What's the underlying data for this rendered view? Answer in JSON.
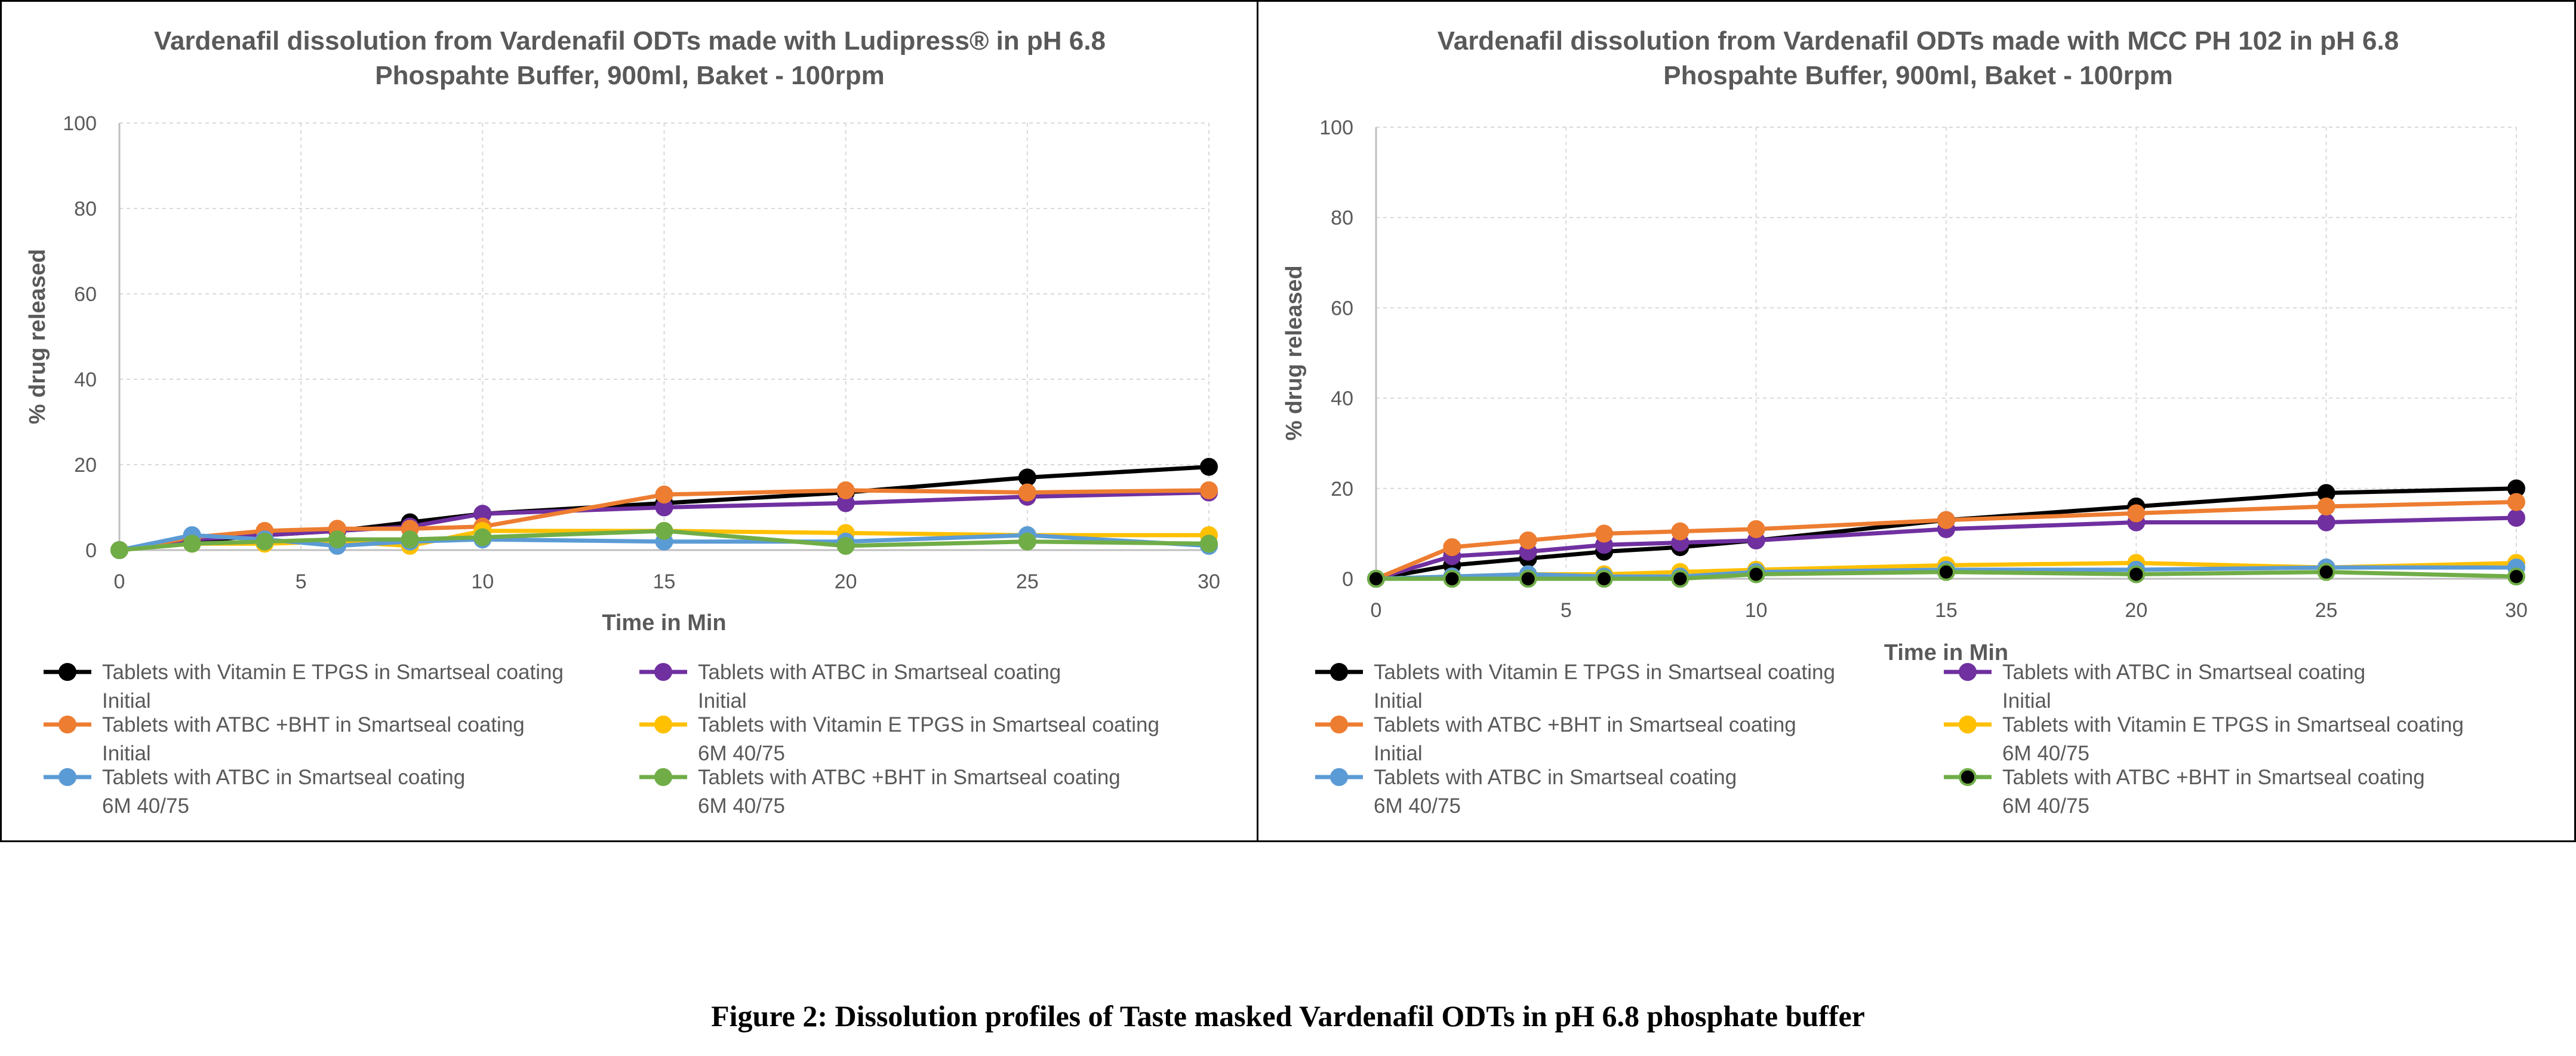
{
  "caption": "Figure 2: Dissolution profiles of Taste masked Vardenafil ODTs in pH 6.8 phosphate buffer",
  "chart_data": [
    {
      "type": "line",
      "title": [
        "Vardenafil dissolution from Vardenafil ODTs made with Ludipress® in pH 6.8",
        "Phospahte Buffer, 900ml, Baket - 100rpm"
      ],
      "xlabel": "Time in Min",
      "ylabel": "% drug released",
      "xlim": [
        0,
        30
      ],
      "ylim": [
        0,
        100
      ],
      "xticks": [
        0,
        5,
        10,
        15,
        20,
        25,
        30
      ],
      "yticks": [
        0,
        20,
        40,
        60,
        80,
        100
      ],
      "grid": true,
      "legend_position": "bottom",
      "series": [
        {
          "legend": [
            "Tablets with Vitamin E TPGS in Smartseal coating",
            "Initial"
          ],
          "color": "#000000",
          "x": [
            0,
            2,
            4,
            6,
            8,
            10,
            15,
            20,
            25,
            30
          ],
          "y": [
            0,
            2,
            3.5,
            4.5,
            6.5,
            8.5,
            11,
            13.5,
            17,
            19.5
          ]
        },
        {
          "legend": [
            "Tablets with ATBC in Smartseal coating",
            "Initial"
          ],
          "color": "#7030a0",
          "x": [
            0,
            2,
            4,
            6,
            8,
            10,
            15,
            20,
            25,
            30
          ],
          "y": [
            0,
            2.5,
            3.5,
            4.5,
            5.5,
            8.5,
            10,
            11,
            12.5,
            13.5
          ]
        },
        {
          "legend": [
            "Tablets with ATBC +BHT in Smartseal coating",
            "Initial"
          ],
          "color": "#ed7d31",
          "x": [
            0,
            2,
            4,
            6,
            8,
            10,
            15,
            20,
            25,
            30
          ],
          "y": [
            0,
            3,
            4.5,
            5,
            5,
            5.5,
            13,
            14,
            13.5,
            14
          ]
        },
        {
          "legend": [
            "Tablets with Vitamin E TPGS in Smartseal coating",
            "6M 40/75"
          ],
          "color": "#ffc000",
          "x": [
            0,
            2,
            4,
            6,
            8,
            10,
            15,
            20,
            25,
            30
          ],
          "y": [
            0,
            1.5,
            1.5,
            2,
            1,
            4.5,
            4.5,
            4,
            3.5,
            3.5
          ]
        },
        {
          "legend": [
            "Tablets with ATBC in Smartseal coating",
            "6M 40/75"
          ],
          "color": "#5b9bd5",
          "x": [
            0,
            2,
            4,
            6,
            8,
            10,
            15,
            20,
            25,
            30
          ],
          "y": [
            0,
            3.5,
            2.5,
            1,
            2,
            2.5,
            2,
            2,
            3.5,
            1
          ]
        },
        {
          "legend": [
            "Tablets with ATBC +BHT in Smartseal coating",
            "6M 40/75"
          ],
          "color": "#70ad47",
          "x": [
            0,
            2,
            4,
            6,
            8,
            10,
            15,
            20,
            25,
            30
          ],
          "y": [
            0,
            1.5,
            2,
            2.5,
            2.5,
            3,
            4.5,
            1,
            2,
            1.5
          ]
        }
      ]
    },
    {
      "type": "line",
      "title": [
        "Vardenafil dissolution from Vardenafil ODTs made with MCC PH 102 in pH 6.8",
        "Phospahte Buffer, 900ml, Baket - 100rpm"
      ],
      "xlabel": "Time in Min",
      "ylabel": "% drug released",
      "xlim": [
        0,
        30
      ],
      "ylim": [
        0,
        100
      ],
      "xticks": [
        0,
        5,
        10,
        15,
        20,
        25,
        30
      ],
      "yticks": [
        0,
        20,
        40,
        60,
        80,
        100
      ],
      "grid": true,
      "legend_position": "bottom",
      "series": [
        {
          "legend": [
            "Tablets with Vitamin E TPGS in Smartseal coating",
            "Initial"
          ],
          "color": "#000000",
          "x": [
            0,
            2,
            4,
            6,
            8,
            10,
            15,
            20,
            25,
            30
          ],
          "y": [
            0,
            3,
            4.5,
            6,
            7,
            8.5,
            13,
            16,
            19,
            20
          ]
        },
        {
          "legend": [
            "Tablets with ATBC in Smartseal coating",
            "Initial"
          ],
          "color": "#7030a0",
          "x": [
            0,
            2,
            4,
            6,
            8,
            10,
            15,
            20,
            25,
            30
          ],
          "y": [
            0,
            5,
            6,
            7.5,
            8,
            8.5,
            11,
            12.5,
            12.5,
            13.5
          ]
        },
        {
          "legend": [
            "Tablets with ATBC +BHT in Smartseal coating",
            "Initial"
          ],
          "color": "#ed7d31",
          "x": [
            0,
            2,
            4,
            6,
            8,
            10,
            15,
            20,
            25,
            30
          ],
          "y": [
            0,
            7,
            8.5,
            10,
            10.5,
            11,
            13,
            14.5,
            16,
            17
          ]
        },
        {
          "legend": [
            "Tablets with Vitamin E TPGS in Smartseal coating",
            "6M 40/75"
          ],
          "color": "#ffc000",
          "x": [
            0,
            2,
            4,
            6,
            8,
            10,
            15,
            20,
            25,
            30
          ],
          "y": [
            0,
            0.5,
            1,
            1,
            1.5,
            2,
            3,
            3.5,
            2.5,
            3.5
          ]
        },
        {
          "legend": [
            "Tablets with ATBC in Smartseal coating",
            "6M 40/75"
          ],
          "color": "#5b9bd5",
          "x": [
            0,
            2,
            4,
            6,
            8,
            10,
            15,
            20,
            25,
            30
          ],
          "y": [
            0,
            0.5,
            1,
            0.5,
            0.5,
            1.5,
            2,
            2,
            2.5,
            2.5
          ]
        },
        {
          "legend": [
            "Tablets with ATBC +BHT in Smartseal coating",
            "6M 40/75"
          ],
          "color": "#70ad47",
          "marker_fill": "#000000",
          "x": [
            0,
            2,
            4,
            6,
            8,
            10,
            15,
            20,
            25,
            30
          ],
          "y": [
            0,
            0,
            0,
            0,
            0,
            1,
            1.5,
            1,
            1.5,
            0.5
          ]
        }
      ]
    }
  ]
}
